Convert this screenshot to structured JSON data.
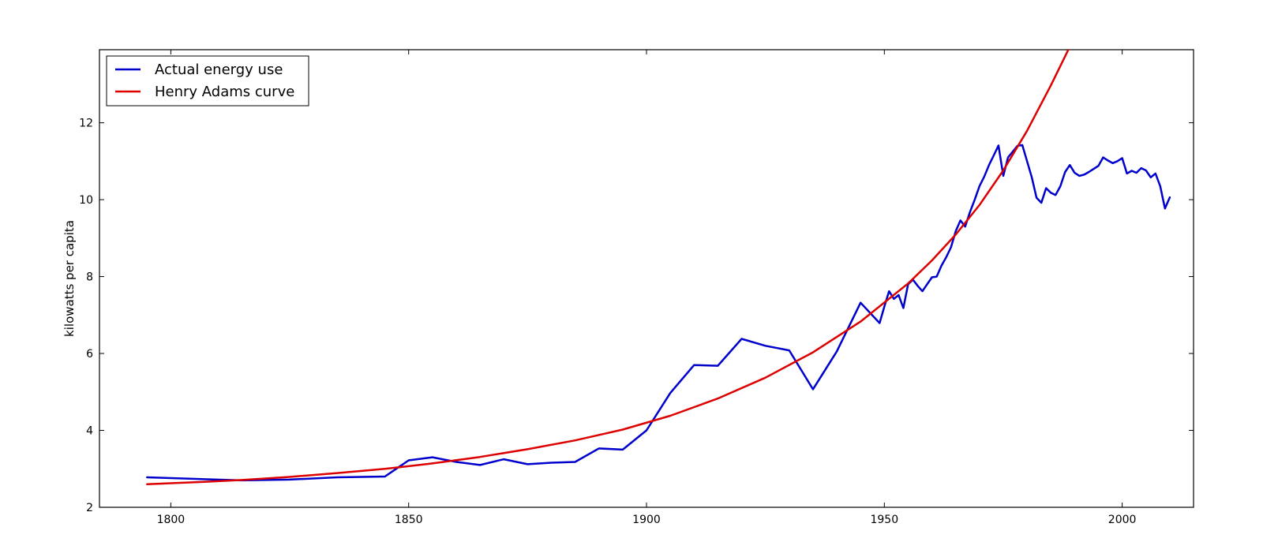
{
  "chart_data": {
    "type": "line",
    "title": "",
    "xlabel": "",
    "ylabel": "kilowatts per capita",
    "xlim": [
      1785,
      2015
    ],
    "ylim": [
      2,
      13.9
    ],
    "xticks": [
      1800,
      1850,
      1900,
      1950,
      2000
    ],
    "xtick_labels": [
      "1800",
      "1850",
      "1900",
      "1950",
      "2000"
    ],
    "yticks": [
      2,
      4,
      6,
      8,
      10,
      12
    ],
    "ytick_labels": [
      "2",
      "4",
      "6",
      "8",
      "10",
      "12"
    ],
    "grid": false,
    "legend": {
      "position": "upper-left"
    },
    "series": [
      {
        "name": "Actual energy use",
        "color": "#0000cc",
        "x": [
          1795,
          1815,
          1825,
          1835,
          1845,
          1850,
          1855,
          1860,
          1865,
          1870,
          1875,
          1880,
          1885,
          1890,
          1895,
          1900,
          1905,
          1910,
          1915,
          1920,
          1925,
          1930,
          1935,
          1940,
          1945,
          1949,
          1950,
          1951,
          1952,
          1953,
          1954,
          1955,
          1956,
          1957,
          1958,
          1959,
          1960,
          1961,
          1962,
          1963,
          1964,
          1965,
          1966,
          1967,
          1968,
          1969,
          1970,
          1971,
          1972,
          1973,
          1974,
          1975,
          1976,
          1977,
          1978,
          1979,
          1980,
          1981,
          1982,
          1983,
          1984,
          1985,
          1986,
          1987,
          1988,
          1989,
          1990,
          1991,
          1992,
          1993,
          1994,
          1995,
          1996,
          1997,
          1998,
          1999,
          2000,
          2001,
          2002,
          2003,
          2004,
          2005,
          2006,
          2007,
          2008,
          2009,
          2010
        ],
        "values": [
          2.78,
          2.7,
          2.72,
          2.78,
          2.8,
          3.22,
          3.3,
          3.18,
          3.1,
          3.25,
          3.12,
          3.16,
          3.18,
          3.53,
          3.5,
          4.0,
          4.97,
          5.7,
          5.68,
          6.38,
          6.2,
          6.08,
          5.07,
          6.05,
          7.32,
          6.79,
          7.22,
          7.62,
          7.42,
          7.52,
          7.18,
          7.8,
          7.92,
          7.76,
          7.62,
          7.8,
          7.98,
          8.0,
          8.28,
          8.5,
          8.76,
          9.18,
          9.46,
          9.3,
          9.68,
          10.0,
          10.35,
          10.6,
          10.9,
          11.15,
          11.41,
          10.62,
          11.1,
          11.25,
          11.4,
          11.42,
          11.0,
          10.58,
          10.05,
          9.92,
          10.3,
          10.18,
          10.12,
          10.35,
          10.72,
          10.9,
          10.7,
          10.62,
          10.65,
          10.72,
          10.8,
          10.88,
          11.1,
          11.02,
          10.95,
          11.0,
          11.08,
          10.68,
          10.75,
          10.7,
          10.82,
          10.76,
          10.58,
          10.68,
          10.35,
          9.77,
          10.06
        ]
      },
      {
        "name": "Henry Adams curve",
        "color": "#dd0000",
        "x": [
          1795,
          1805,
          1815,
          1825,
          1835,
          1845,
          1855,
          1865,
          1875,
          1885,
          1895,
          1905,
          1915,
          1925,
          1935,
          1945,
          1955,
          1960,
          1965,
          1970,
          1975,
          1980,
          1985,
          1990,
          1993
        ],
        "values": [
          2.6,
          2.65,
          2.71,
          2.79,
          2.89,
          3.0,
          3.14,
          3.31,
          3.51,
          3.74,
          4.02,
          4.38,
          4.83,
          5.37,
          6.03,
          6.83,
          7.82,
          8.42,
          9.09,
          9.86,
          10.76,
          11.79,
          12.97,
          14.23,
          15.1
        ]
      }
    ]
  }
}
